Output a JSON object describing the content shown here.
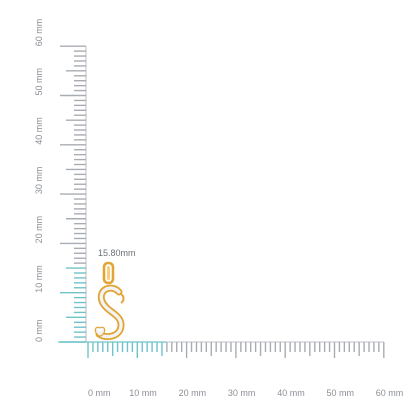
{
  "measurement": {
    "label": "15.80mm",
    "value_mm": 15.8,
    "unit": "mm"
  },
  "scale": {
    "horizontal_labels": [
      "0 mm",
      "10 mm",
      "20 mm",
      "30 mm",
      "40 mm",
      "50 mm",
      "60 mm"
    ],
    "vertical_labels": [
      "0 mm",
      "10 mm",
      "20 mm",
      "30 mm",
      "40 mm",
      "50 mm",
      "60 mm"
    ],
    "highlight_extent_mm": 15.8,
    "colors": {
      "tick": "#a8adb3",
      "highlight": "#6fc3c9",
      "label": "#8a8f96",
      "gold": "#e0a535",
      "diamond": "#dfe3e6"
    }
  },
  "product": {
    "icon": "letter-s-pendant-icon",
    "letter": "S"
  }
}
